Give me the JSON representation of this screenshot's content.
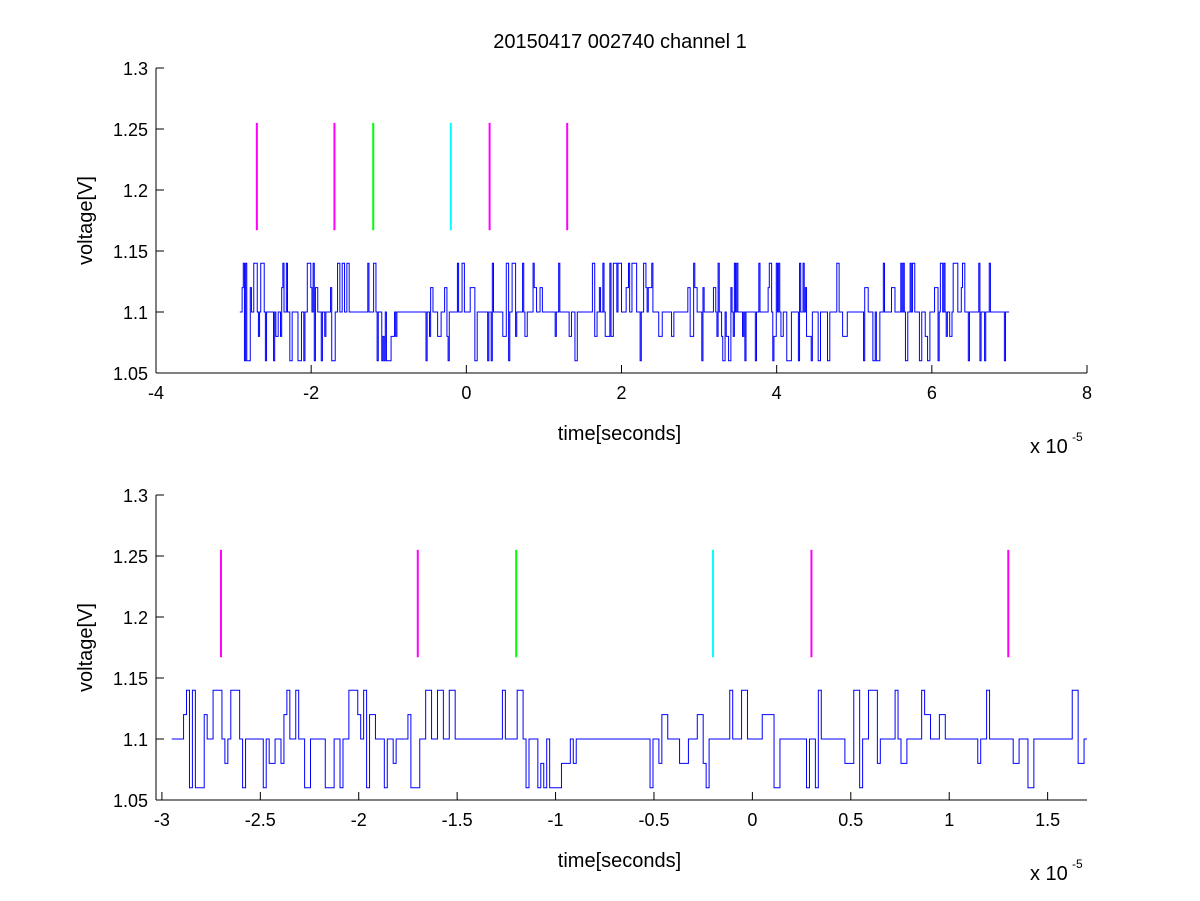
{
  "figure": {
    "title": "20150417 002740 channel 1"
  },
  "chart_data": [
    {
      "type": "line",
      "panel": "top",
      "title": "20150417 002740 channel 1",
      "xlabel": "time[seconds]",
      "ylabel": "voltage[V]",
      "x_exponent_label": "x 10",
      "x_exponent_power": "-5",
      "x_scale": 1e-05,
      "xlim": [
        -4,
        8
      ],
      "ylim": [
        1.05,
        1.3
      ],
      "xticks": [
        -4,
        -2,
        0,
        2,
        4,
        6,
        8
      ],
      "xtick_labels": [
        "-4",
        "-2",
        "0",
        "2",
        "4",
        "6",
        "8"
      ],
      "yticks": [
        1.05,
        1.1,
        1.15,
        1.2,
        1.25,
        1.3
      ],
      "ytick_labels": [
        "1.05",
        "1.1",
        "1.15",
        "1.2",
        "1.25",
        "1.3"
      ],
      "grid": false,
      "signal": {
        "color": "#0000ff",
        "x_range": [
          -2.93,
          7.0
        ],
        "levels": [
          1.06,
          1.08,
          1.1,
          1.12,
          1.14
        ],
        "description": "quantized noise, mostly 1.10 V with frequent spikes to 1.06 and 1.14"
      },
      "markers": [
        {
          "x": -2.7,
          "y_range": [
            1.167,
            1.255
          ],
          "color": "#ff00ff"
        },
        {
          "x": -1.7,
          "y_range": [
            1.167,
            1.255
          ],
          "color": "#ff00ff"
        },
        {
          "x": -1.2,
          "y_range": [
            1.167,
            1.255
          ],
          "color": "#00ff00"
        },
        {
          "x": -0.2,
          "y_range": [
            1.167,
            1.255
          ],
          "color": "#00ffff"
        },
        {
          "x": 0.3,
          "y_range": [
            1.167,
            1.255
          ],
          "color": "#ff00ff"
        },
        {
          "x": 1.3,
          "y_range": [
            1.167,
            1.255
          ],
          "color": "#ff00ff"
        }
      ]
    },
    {
      "type": "line",
      "panel": "bottom",
      "title": "",
      "xlabel": "time[seconds]",
      "ylabel": "voltage[V]",
      "x_exponent_label": "x 10",
      "x_exponent_power": "-5",
      "x_scale": 1e-05,
      "xlim": [
        -3.03,
        1.7
      ],
      "ylim": [
        1.05,
        1.3
      ],
      "xticks": [
        -3,
        -2.5,
        -2,
        -1.5,
        -1,
        -0.5,
        0,
        0.5,
        1,
        1.5
      ],
      "xtick_labels": [
        "-3",
        "-2.5",
        "-2",
        "-1.5",
        "-1",
        "-0.5",
        "0",
        "0.5",
        "1",
        "1.5"
      ],
      "yticks": [
        1.05,
        1.1,
        1.15,
        1.2,
        1.25,
        1.3
      ],
      "ytick_labels": [
        "1.05",
        "1.1",
        "1.15",
        "1.2",
        "1.25",
        "1.3"
      ],
      "grid": false,
      "signal": {
        "color": "#0000ff",
        "x_range": [
          -2.95,
          1.7
        ],
        "levels": [
          1.06,
          1.08,
          1.1,
          1.12,
          1.14
        ],
        "description": "zoomed view of the same quantized noise signal"
      },
      "markers": [
        {
          "x": -2.7,
          "y_range": [
            1.167,
            1.255
          ],
          "color": "#ff00ff"
        },
        {
          "x": -1.7,
          "y_range": [
            1.167,
            1.255
          ],
          "color": "#ff00ff"
        },
        {
          "x": -1.2,
          "y_range": [
            1.167,
            1.255
          ],
          "color": "#00ff00"
        },
        {
          "x": -0.2,
          "y_range": [
            1.167,
            1.255
          ],
          "color": "#00ffff"
        },
        {
          "x": 0.3,
          "y_range": [
            1.167,
            1.255
          ],
          "color": "#ff00ff"
        },
        {
          "x": 1.3,
          "y_range": [
            1.167,
            1.255
          ],
          "color": "#ff00ff"
        }
      ]
    }
  ]
}
